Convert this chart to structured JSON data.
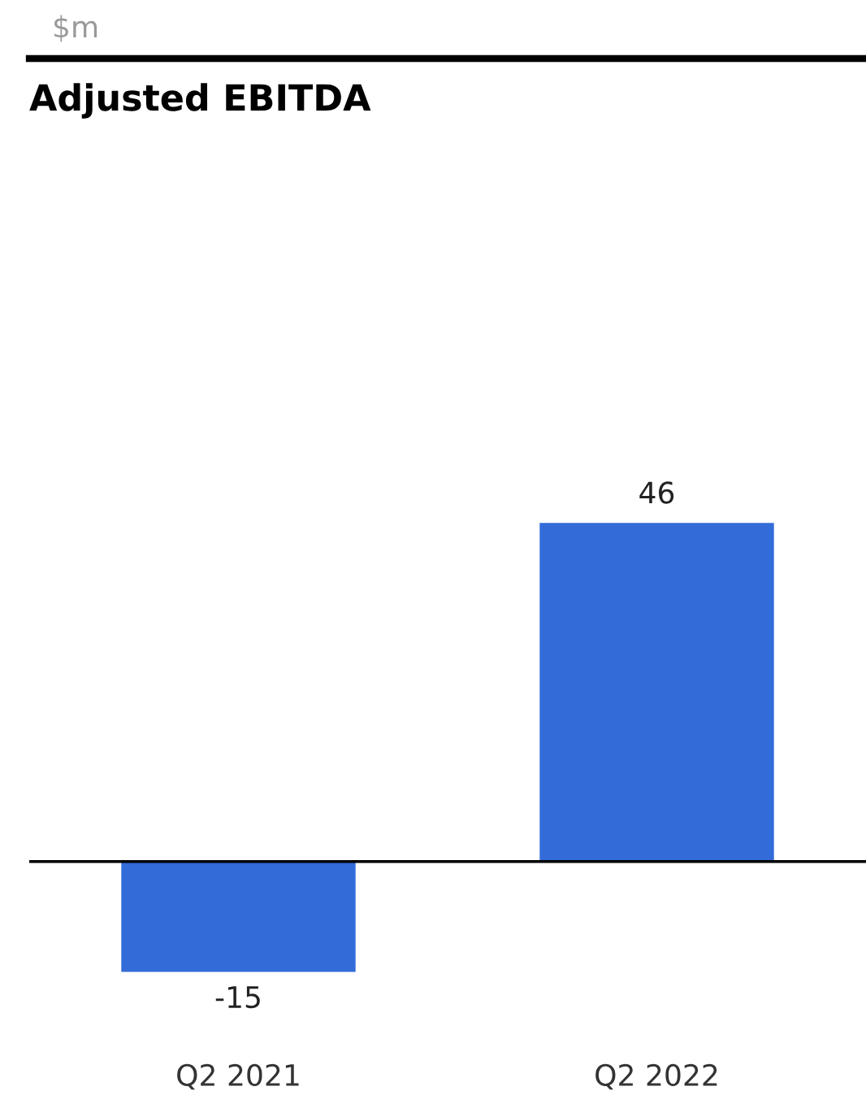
{
  "chart_data": {
    "type": "bar",
    "title": "Adjusted EBITDA",
    "annotations": [
      "$m"
    ],
    "categories": [
      "Q2 2021",
      "Q2 2022"
    ],
    "values": [
      -15,
      46
    ],
    "color": "#336bd9",
    "data_labels": true
  }
}
